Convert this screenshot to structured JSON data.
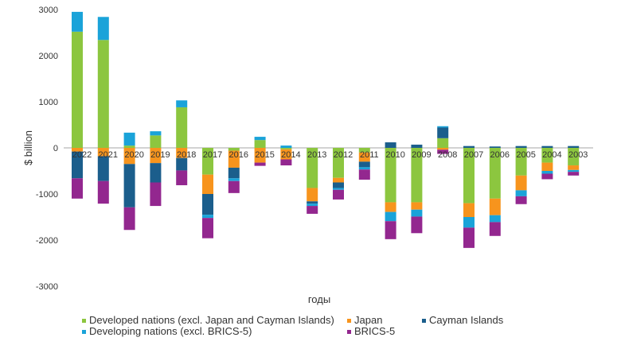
{
  "chart_data": {
    "type": "bar",
    "stacked": true,
    "xlabel": "годы",
    "ylabel": "$ billion",
    "ylim": [
      -3000,
      3000
    ],
    "yticks": [
      3000,
      2000,
      1000,
      0,
      -1000,
      -2000,
      -3000
    ],
    "categories": [
      "2022",
      "2021",
      "2020",
      "2019",
      "2018",
      "2017",
      "2016",
      "2015",
      "2014",
      "2013",
      "2012",
      "2011",
      "2010",
      "2009",
      "2008",
      "2007",
      "2006",
      "2005",
      "2004",
      "2003"
    ],
    "series": [
      {
        "name": "Developed nations (excl. Japan and Cayman Islands)",
        "color": "#8cc63f",
        "values": [
          2520,
          2340,
          50,
          270,
          880,
          -580,
          -60,
          170,
          -30,
          -870,
          -650,
          -100,
          -1180,
          -1180,
          210,
          -1200,
          -1100,
          -600,
          -320,
          -380
        ]
      },
      {
        "name": "Japan",
        "color": "#f7941d",
        "values": [
          -80,
          -180,
          -350,
          -330,
          -220,
          -420,
          -370,
          -320,
          -220,
          -290,
          -100,
          -200,
          -210,
          -160,
          -40,
          -300,
          -360,
          -320,
          -180,
          -100
        ]
      },
      {
        "name": "Cayman Islands",
        "color": "#1b5e8c",
        "values": [
          -580,
          -540,
          -940,
          -420,
          -270,
          -450,
          -230,
          0,
          0,
          -50,
          -120,
          -120,
          120,
          70,
          230,
          40,
          30,
          40,
          40,
          40
        ]
      },
      {
        "name": "Developing nations (excl. BRICS-5)",
        "color": "#1aa3d9",
        "values": [
          430,
          500,
          280,
          90,
          150,
          -70,
          -60,
          70,
          50,
          -50,
          -40,
          -50,
          -200,
          -150,
          30,
          -230,
          -150,
          -130,
          -60,
          -40
        ]
      },
      {
        "name": "BRICS-5",
        "color": "#93278f",
        "values": [
          -440,
          -490,
          -490,
          -510,
          -320,
          -440,
          -260,
          -70,
          -130,
          -170,
          -210,
          -220,
          -390,
          -360,
          -90,
          -440,
          -300,
          -170,
          -120,
          -80
        ]
      }
    ],
    "legend_position": "bottom",
    "grid": false
  }
}
